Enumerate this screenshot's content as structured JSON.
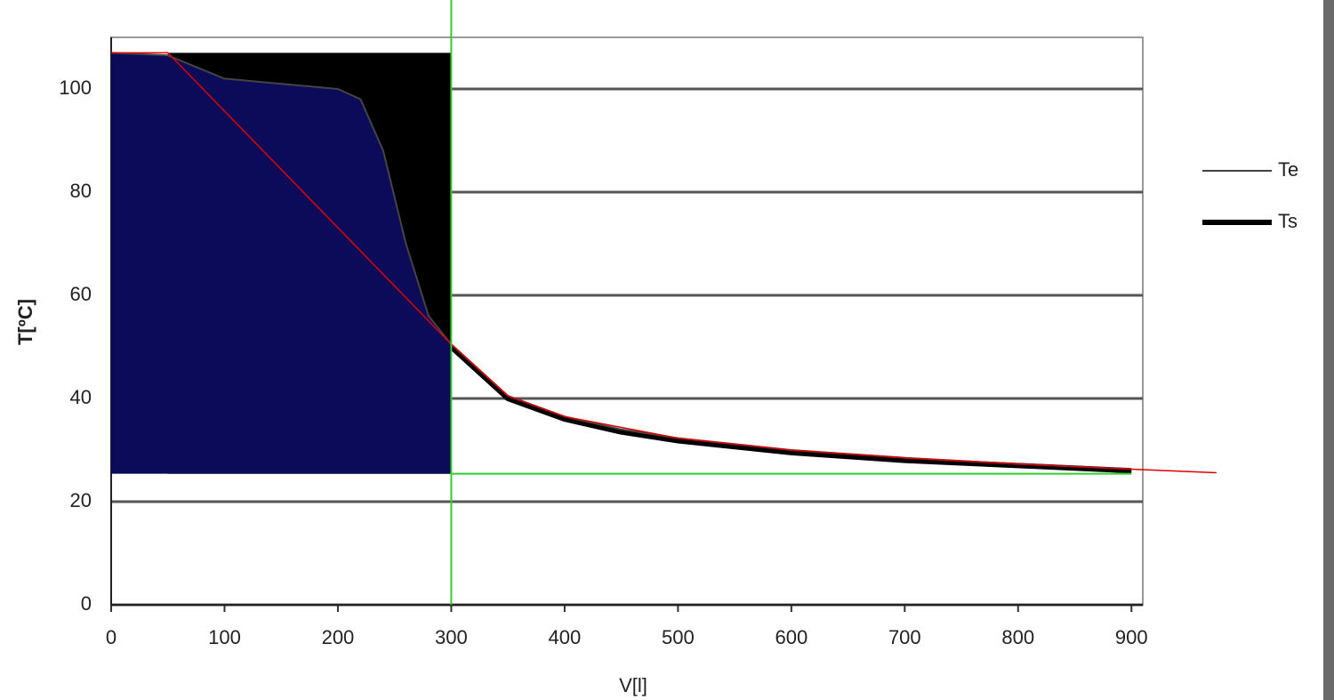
{
  "chart_data": {
    "type": "line",
    "x_label": "V[l]",
    "y_label": "T[ºC]",
    "x": [
      0,
      50,
      100,
      150,
      200,
      220,
      240,
      260,
      280,
      300,
      350,
      400,
      450,
      500,
      600,
      700,
      800,
      900
    ],
    "series": [
      {
        "name": "Te",
        "color": "#444444",
        "width": 2,
        "values": [
          107,
          106.5,
          102,
          101,
          100,
          98,
          88,
          70,
          56,
          50.5,
          40.5,
          36.5,
          34,
          32.3,
          30,
          28.5,
          27.3,
          26.3
        ]
      },
      {
        "name": "Ts",
        "color": "#000000",
        "width": 6,
        "values": [
          null,
          null,
          null,
          null,
          null,
          null,
          null,
          null,
          null,
          50,
          40,
          36,
          33.5,
          31.8,
          29.5,
          28,
          27,
          26
        ]
      }
    ],
    "xlim": [
      0,
      910
    ],
    "ylim": [
      0,
      110
    ],
    "xticks": [
      0,
      100,
      200,
      300,
      400,
      500,
      600,
      700,
      800,
      900
    ],
    "yticks": [
      0,
      20,
      40,
      60,
      80,
      100
    ],
    "grid": true,
    "legend": "right",
    "overlays": {
      "black_fill": {
        "color": "#000000",
        "x": [
          50,
          300
        ],
        "y": [
          25.4,
          107
        ]
      },
      "navy_fill": {
        "color": "#0b0b5a",
        "x_end": 300,
        "y_floor": 25.4
      },
      "red_line": {
        "color": "#dd0000",
        "x": [
          0,
          50,
          300,
          350,
          400,
          500,
          600,
          700,
          800,
          900,
          975
        ],
        "y": [
          107,
          107,
          50.5,
          40.5,
          36.5,
          32.3,
          30,
          28.5,
          27.3,
          26.3,
          25.6
        ]
      },
      "green_lines": {
        "color": "#33cc33",
        "x": 300,
        "y": 25.4
      }
    }
  }
}
